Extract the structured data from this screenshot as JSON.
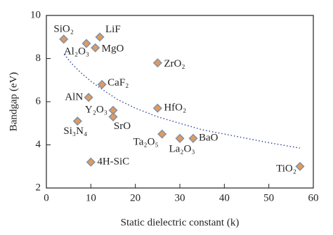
{
  "chart_data": {
    "type": "scatter",
    "xlabel": "Static dielectric constant (k)",
    "ylabel": "Bandgap (eV)",
    "x": [
      3.9,
      9,
      12,
      11,
      25,
      12.5,
      9.5,
      15,
      15,
      25,
      7,
      26,
      30,
      33,
      10,
      57
    ],
    "values": [
      8.9,
      8.7,
      9.0,
      8.5,
      7.8,
      6.8,
      6.2,
      5.6,
      5.3,
      5.7,
      5.1,
      4.5,
      4.3,
      4.3,
      3.2,
      3.0
    ],
    "labels": [
      "SiO₂",
      "Al₂O₃",
      "LiF",
      "MgO",
      "ZrO₂",
      "CaF₂",
      "AlN",
      "Y₂O₃",
      "SrO",
      "HfO₂",
      "Si₃N₄",
      "Ta₂O₅",
      "La₂O₃",
      "BaO",
      "4H-SiC",
      "TiO₂"
    ],
    "color": "#e39a5b",
    "edge_color": "#8090a8",
    "trend": {
      "x": [
        4,
        6,
        8,
        10,
        12,
        16,
        20,
        25,
        30,
        35,
        40,
        45,
        50,
        57
      ],
      "values": [
        8.2,
        7.7,
        7.3,
        6.95,
        6.65,
        6.1,
        5.7,
        5.3,
        5.0,
        4.7,
        4.5,
        4.3,
        4.1,
        3.85
      ],
      "color": "#3c4a9c"
    },
    "xlim": [
      0,
      60
    ],
    "ylim": [
      2,
      10
    ],
    "xticks": [
      0,
      10,
      20,
      30,
      40,
      50,
      60
    ],
    "yticks": [
      2,
      4,
      6,
      8,
      10
    ]
  }
}
